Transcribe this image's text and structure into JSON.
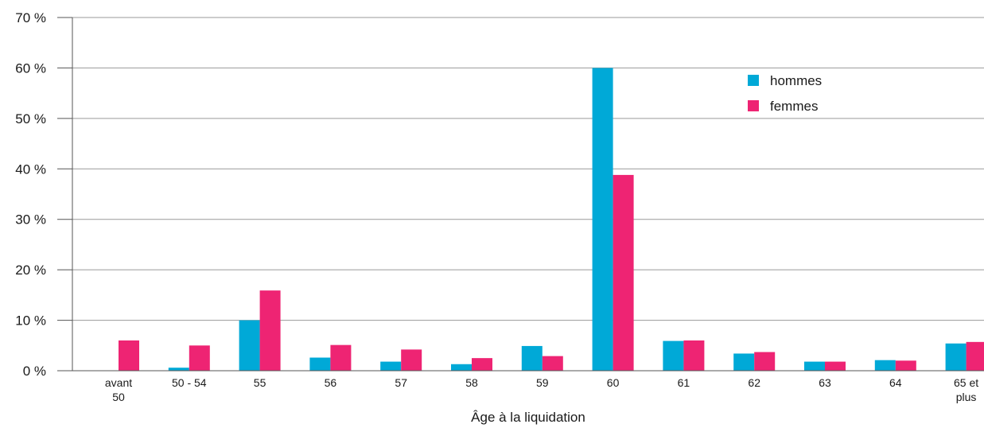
{
  "chart_data": {
    "type": "bar",
    "title": "",
    "xlabel": "Âge à la liquidation",
    "ylabel": "",
    "ylim": [
      0,
      70
    ],
    "yticks": [
      "0 %",
      "10 %",
      "20 %",
      "30 %",
      "40 %",
      "50 %",
      "60 %",
      "70 %"
    ],
    "grid": true,
    "legend_position": "top-right",
    "categories": [
      [
        "avant",
        "50"
      ],
      [
        "50 - 54"
      ],
      [
        "55"
      ],
      [
        "56"
      ],
      [
        "57"
      ],
      [
        "58"
      ],
      [
        "59"
      ],
      [
        "60"
      ],
      [
        "61"
      ],
      [
        "62"
      ],
      [
        "63"
      ],
      [
        "64"
      ],
      [
        "65 et",
        "plus"
      ]
    ],
    "series": [
      {
        "name": "hommes",
        "color": "#00a9d7",
        "values": [
          0,
          0.6,
          10,
          2.6,
          1.8,
          1.3,
          4.9,
          60,
          5.9,
          3.4,
          1.8,
          2.1,
          5.4
        ]
      },
      {
        "name": "femmes",
        "color": "#ee2473",
        "values": [
          6,
          5,
          15.9,
          5.1,
          4.2,
          2.5,
          2.9,
          38.8,
          6,
          3.7,
          1.8,
          2,
          5.7
        ]
      }
    ]
  }
}
